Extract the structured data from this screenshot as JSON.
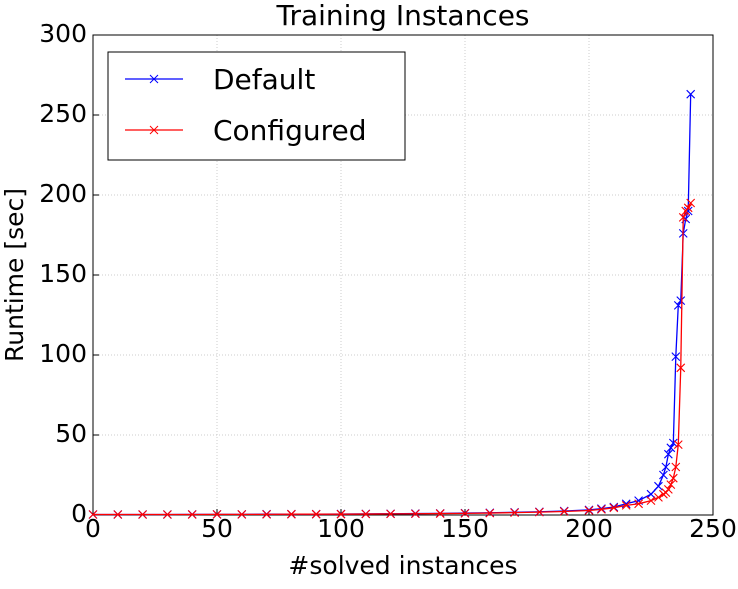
{
  "chart_data": {
    "type": "line",
    "title": "Training Instances",
    "x_label": "#solved instances",
    "y_label": "Runtime [sec]",
    "x": [
      0,
      10,
      20,
      30,
      40,
      50,
      60,
      70,
      80,
      90,
      100,
      110,
      120,
      130,
      140,
      150,
      160,
      170,
      180,
      190,
      200,
      205,
      210,
      215,
      220,
      225,
      228,
      230,
      231,
      232,
      233,
      234,
      235,
      236,
      237,
      238,
      239,
      240,
      241
    ],
    "series": [
      {
        "name": "Default",
        "color": "#0000ff",
        "values": [
          0.3,
          0.3,
          0.3,
          0.3,
          0.4,
          0.4,
          0.4,
          0.5,
          0.5,
          0.5,
          0.6,
          0.7,
          0.8,
          0.9,
          1.0,
          1.2,
          1.4,
          1.7,
          2.0,
          2.5,
          3.2,
          4,
          5,
          7,
          9,
          13,
          18,
          25,
          30,
          38,
          42,
          45,
          99,
          131,
          134,
          176,
          185,
          190,
          263
        ]
      },
      {
        "name": "Configured",
        "color": "#ff0000",
        "values": [
          0.3,
          0.3,
          0.3,
          0.3,
          0.3,
          0.4,
          0.4,
          0.4,
          0.5,
          0.5,
          0.5,
          0.6,
          0.7,
          0.8,
          0.9,
          1.0,
          1.2,
          1.5,
          1.8,
          2.2,
          2.8,
          3.5,
          4.5,
          6,
          7,
          9,
          11,
          13,
          14,
          16,
          19,
          23,
          30,
          44,
          92,
          186,
          190,
          192,
          195
        ]
      }
    ],
    "xlim": [
      0,
      250
    ],
    "xticks": [
      0,
      50,
      100,
      150,
      200,
      250
    ],
    "ylim": [
      0,
      300
    ],
    "yticks": [
      0,
      50,
      100,
      150,
      200,
      250,
      300
    ],
    "grid": true,
    "legend": "upper left"
  }
}
